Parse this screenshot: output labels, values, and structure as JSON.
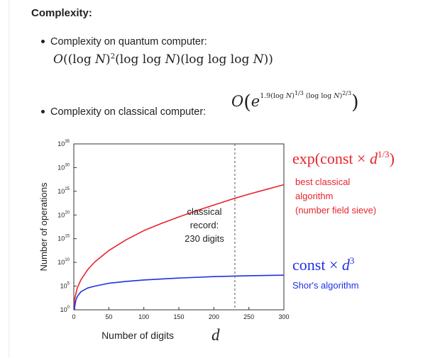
{
  "heading": "Complexity:",
  "items": [
    {
      "label": "Complexity on quantum computer:"
    },
    {
      "label": "Complexity on classical computer:"
    }
  ],
  "chart_data": {
    "type": "line",
    "xlabel": "Number of digits",
    "xlabel_var": "d",
    "ylabel": "Number of operations",
    "xlim": [
      0,
      300
    ],
    "ylim_log10": [
      0,
      35
    ],
    "x_ticks": [
      "0",
      "50",
      "100",
      "150",
      "200",
      "250",
      "300"
    ],
    "y_ticks": [
      "10^0",
      "10^5",
      "10^10",
      "10^15",
      "10^20",
      "10^25",
      "10^30",
      "10^35"
    ],
    "y_tick_bases": [
      "10",
      "10",
      "10",
      "10",
      "10",
      "10",
      "10",
      "10"
    ],
    "y_tick_exps": [
      "0",
      "5",
      "10",
      "15",
      "20",
      "25",
      "30",
      "35"
    ],
    "grid": false,
    "series": [
      {
        "name": "best classical algorithm (number field sieve)",
        "color": "#e8232a",
        "x": [
          1,
          5,
          10,
          20,
          30,
          50,
          75,
          100,
          125,
          150,
          175,
          200,
          225,
          250,
          275,
          300
        ],
        "y_log10": [
          2.2,
          4.6,
          6.3,
          8.5,
          10.1,
          12.5,
          14.8,
          16.7,
          18.2,
          19.6,
          20.9,
          22.1,
          23.3,
          24.4,
          25.4,
          26.4
        ]
      },
      {
        "name": "Shor's algorithm",
        "color": "#1f2fe6",
        "x": [
          1,
          3,
          5,
          10,
          20,
          30,
          50,
          75,
          100,
          150,
          200,
          250,
          300
        ],
        "y_log10": [
          0.5,
          2.1,
          2.8,
          3.8,
          4.6,
          5.0,
          5.6,
          6.0,
          6.3,
          6.7,
          7.0,
          7.2,
          7.3
        ]
      }
    ],
    "marker": {
      "x": 230,
      "label_lines": [
        "classical",
        "record:",
        "230 digits"
      ]
    },
    "annotations": {
      "classical_formula": "exp(const × d^{1/3})",
      "classical_lines": [
        "best classical",
        "algorithm",
        "(number field sieve)"
      ],
      "shor_formula": "const × d^3",
      "shor_label": "Shor's algorithm"
    }
  },
  "colors": {
    "classical": "#e8232a",
    "shor": "#1f2fe6",
    "marker": "#555555"
  }
}
